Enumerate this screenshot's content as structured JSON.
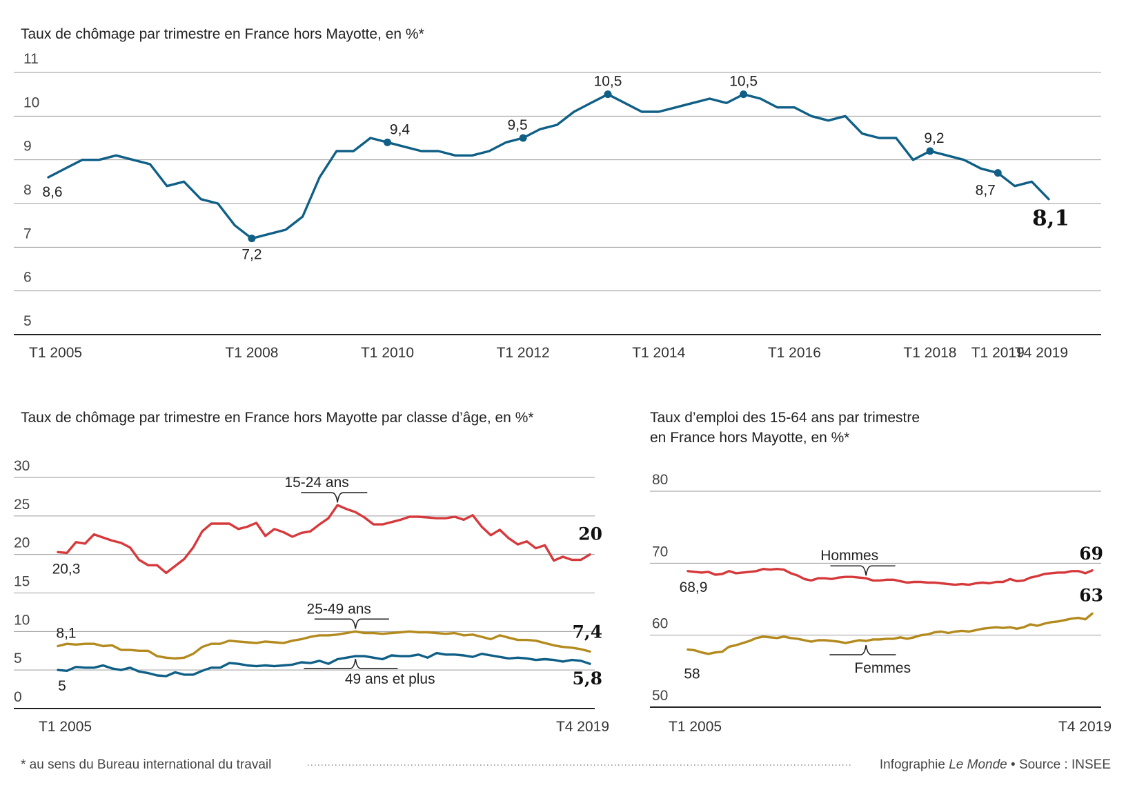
{
  "colors": {
    "blue": "#0f5f86",
    "red": "#d6393b",
    "gold": "#b38a1e"
  },
  "footer": {
    "note": "* au sens du Bureau international du travail",
    "credit_prefix": "Infographie ",
    "credit_brand": "Le Monde",
    "credit_suffix": " • Source : INSEE"
  },
  "chart_data": [
    {
      "id": "chomage",
      "type": "line",
      "title": "Taux de chômage par trimestre en France hors Mayotte, en %*",
      "ylim": [
        5,
        11
      ],
      "yticks": [
        5,
        6,
        7,
        8,
        9,
        10,
        11
      ],
      "grid": true,
      "x_ticks": [
        {
          "label": "T1 2005",
          "i": 0
        },
        {
          "label": "T1 2008",
          "i": 12
        },
        {
          "label": "T1 2010",
          "i": 20
        },
        {
          "label": "T1 2012",
          "i": 28
        },
        {
          "label": "T1 2014",
          "i": 36
        },
        {
          "label": "T1 2016",
          "i": 44
        },
        {
          "label": "T1 2018",
          "i": 52
        },
        {
          "label": "T1 2019",
          "i": 56
        },
        {
          "label": "T4 2019",
          "i": 59
        }
      ],
      "series": [
        {
          "color": "blue",
          "values": [
            8.6,
            8.8,
            9.0,
            9.0,
            9.1,
            9.0,
            8.9,
            8.4,
            8.5,
            8.1,
            8.0,
            7.5,
            7.2,
            7.3,
            7.4,
            7.7,
            8.6,
            9.2,
            9.2,
            9.5,
            9.4,
            9.3,
            9.2,
            9.2,
            9.1,
            9.1,
            9.2,
            9.4,
            9.5,
            9.7,
            9.8,
            10.1,
            10.3,
            10.5,
            10.3,
            10.1,
            10.1,
            10.2,
            10.3,
            10.4,
            10.3,
            10.5,
            10.4,
            10.2,
            10.2,
            10.0,
            9.9,
            10.0,
            9.6,
            9.5,
            9.5,
            9.0,
            9.2,
            9.1,
            9.0,
            8.8,
            8.7,
            8.4,
            8.5,
            8.1
          ]
        }
      ],
      "annotations": [
        {
          "i": 0,
          "text": "8,6",
          "dot": false
        },
        {
          "i": 12,
          "text": "7,2",
          "dot": true
        },
        {
          "i": 20,
          "text": "9,4",
          "dot": true
        },
        {
          "i": 28,
          "text": "9,5",
          "dot": true
        },
        {
          "i": 33,
          "text": "10,5",
          "dot": true
        },
        {
          "i": 41,
          "text": "10,5",
          "dot": true
        },
        {
          "i": 52,
          "text": "9,2",
          "dot": true
        },
        {
          "i": 56,
          "text": "8,7",
          "dot": true
        },
        {
          "i": 59,
          "text": "8,1",
          "dot": false,
          "emphasis": true
        }
      ]
    },
    {
      "id": "chomage_age",
      "type": "line",
      "title": "Taux de chômage par trimestre en France hors Mayotte par classe d’âge, en %*",
      "ylim": [
        0,
        30
      ],
      "yticks": [
        0,
        5,
        10,
        15,
        20,
        25,
        30
      ],
      "grid": true,
      "x_ticks": [
        {
          "label": "T1 2005",
          "i": 0
        },
        {
          "label": "T4 2019",
          "i": 59
        }
      ],
      "series": [
        {
          "name": "15-24 ans",
          "color": "red",
          "start_label": "20,3",
          "end_label": "20",
          "values": [
            20.3,
            20.2,
            21.6,
            21.4,
            22.6,
            22.2,
            21.8,
            21.5,
            20.9,
            19.3,
            18.6,
            18.6,
            17.6,
            18.5,
            19.4,
            20.9,
            23.0,
            24.0,
            24.0,
            24.0,
            23.3,
            23.6,
            24.1,
            22.4,
            23.3,
            22.9,
            22.3,
            22.8,
            23.0,
            23.9,
            24.7,
            26.4,
            25.9,
            25.5,
            24.8,
            23.9,
            23.9,
            24.2,
            24.5,
            24.9,
            24.9,
            24.8,
            24.7,
            24.7,
            24.9,
            24.5,
            25.1,
            23.6,
            22.5,
            23.2,
            22.1,
            21.3,
            21.7,
            20.8,
            21.2,
            19.2,
            19.7,
            19.3,
            19.3,
            20.0
          ]
        },
        {
          "name": "25-49 ans",
          "color": "gold",
          "start_label": "8,1",
          "end_label": "7,4",
          "values": [
            8.1,
            8.4,
            8.3,
            8.4,
            8.4,
            8.1,
            8.2,
            7.6,
            7.6,
            7.5,
            7.5,
            6.8,
            6.6,
            6.5,
            6.6,
            7.1,
            8.0,
            8.4,
            8.4,
            8.8,
            8.7,
            8.6,
            8.5,
            8.7,
            8.6,
            8.5,
            8.8,
            9.0,
            9.3,
            9.5,
            9.5,
            9.6,
            9.8,
            10.0,
            9.8,
            9.8,
            9.7,
            9.8,
            9.9,
            10.0,
            9.9,
            9.9,
            9.8,
            9.7,
            9.8,
            9.5,
            9.6,
            9.3,
            9.0,
            9.5,
            9.2,
            8.9,
            8.9,
            8.8,
            8.5,
            8.2,
            8.0,
            7.9,
            7.7,
            7.4
          ]
        },
        {
          "name": "49 ans et plus",
          "color": "blue",
          "start_label": "5",
          "end_label": "5,8",
          "values": [
            5.0,
            4.9,
            5.4,
            5.3,
            5.3,
            5.6,
            5.2,
            5.0,
            5.3,
            4.8,
            4.6,
            4.3,
            4.2,
            4.7,
            4.4,
            4.4,
            4.9,
            5.3,
            5.3,
            5.9,
            5.8,
            5.6,
            5.5,
            5.6,
            5.5,
            5.6,
            5.7,
            6.0,
            5.9,
            6.2,
            5.8,
            6.4,
            6.6,
            6.8,
            6.8,
            6.6,
            6.4,
            6.9,
            6.8,
            6.8,
            7.0,
            6.6,
            7.2,
            7.0,
            7.0,
            6.9,
            6.7,
            7.1,
            6.9,
            6.7,
            6.5,
            6.6,
            6.5,
            6.3,
            6.4,
            6.3,
            6.1,
            6.3,
            6.2,
            5.8
          ]
        }
      ]
    },
    {
      "id": "emploi",
      "type": "line",
      "title": [
        "Taux d’emploi des 15-64 ans par trimestre",
        "en France hors Mayotte, en %*"
      ],
      "ylim": [
        50,
        80
      ],
      "yticks": [
        50,
        60,
        70,
        80
      ],
      "grid": true,
      "x_ticks": [
        {
          "label": "T1 2005",
          "i": 0
        },
        {
          "label": "T4 2019",
          "i": 59
        }
      ],
      "series": [
        {
          "name": "Hommes",
          "color": "red",
          "start_label": "68,9",
          "end_label": "69",
          "values": [
            68.9,
            68.8,
            68.7,
            68.8,
            68.4,
            68.5,
            68.9,
            68.6,
            68.7,
            68.8,
            68.9,
            69.2,
            69.1,
            69.2,
            69.1,
            68.6,
            68.3,
            67.8,
            67.6,
            67.9,
            67.9,
            67.8,
            68.0,
            68.1,
            68.1,
            68.0,
            67.9,
            67.6,
            67.6,
            67.7,
            67.7,
            67.5,
            67.3,
            67.4,
            67.4,
            67.3,
            67.3,
            67.2,
            67.1,
            67.0,
            67.1,
            67.0,
            67.2,
            67.3,
            67.2,
            67.4,
            67.4,
            67.8,
            67.5,
            67.6,
            68.0,
            68.2,
            68.5,
            68.6,
            68.7,
            68.7,
            68.9,
            68.9,
            68.6,
            69.0
          ]
        },
        {
          "name": "Femmes",
          "color": "gold",
          "start_label": "58",
          "end_label": "63",
          "values": [
            58.0,
            57.9,
            57.6,
            57.4,
            57.6,
            57.7,
            58.4,
            58.6,
            58.9,
            59.2,
            59.6,
            59.8,
            59.7,
            59.6,
            59.8,
            59.6,
            59.5,
            59.3,
            59.1,
            59.3,
            59.3,
            59.2,
            59.1,
            58.9,
            59.1,
            59.3,
            59.2,
            59.4,
            59.4,
            59.5,
            59.5,
            59.7,
            59.5,
            59.7,
            60.0,
            60.1,
            60.4,
            60.5,
            60.3,
            60.5,
            60.6,
            60.5,
            60.7,
            60.9,
            61.0,
            61.1,
            61.0,
            61.1,
            60.9,
            61.1,
            61.5,
            61.3,
            61.6,
            61.8,
            61.9,
            62.1,
            62.3,
            62.4,
            62.2,
            63.0
          ]
        }
      ]
    }
  ]
}
